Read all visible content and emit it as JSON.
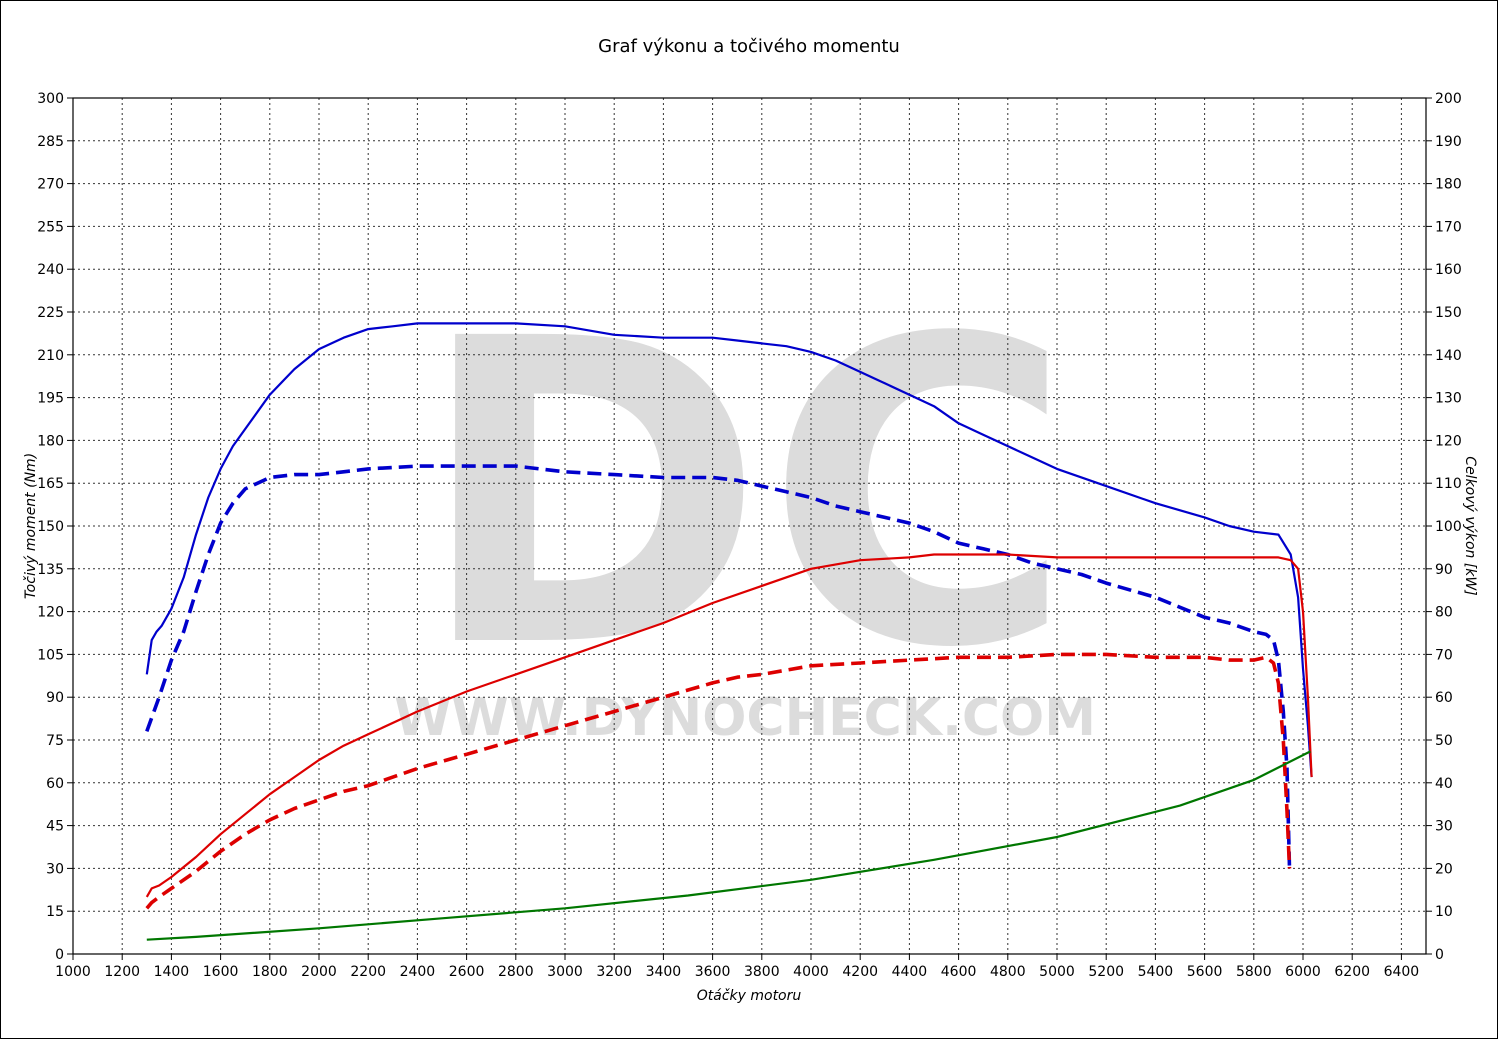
{
  "chart_data": {
    "type": "line",
    "title": "Graf výkonu a točivého momentu",
    "xlabel": "Otáčky motoru",
    "ylabel_left": "Točivý moment (Nm)",
    "ylabel_right": "Celkový výkon [kW]",
    "xlim": [
      1000,
      6500
    ],
    "ylim_left": [
      0,
      300
    ],
    "ylim_right": [
      0,
      200
    ],
    "x_ticks": [
      1000,
      1200,
      1400,
      1600,
      1800,
      2000,
      2200,
      2400,
      2600,
      2800,
      3000,
      3200,
      3400,
      3600,
      3800,
      4000,
      4200,
      4400,
      4600,
      4800,
      5000,
      5200,
      5400,
      5600,
      5800,
      6000,
      6200,
      6400
    ],
    "y_left_ticks": [
      0,
      15,
      30,
      45,
      60,
      75,
      90,
      105,
      120,
      135,
      150,
      165,
      180,
      195,
      210,
      225,
      240,
      255,
      270,
      285,
      300
    ],
    "y_right_ticks": [
      0,
      10,
      20,
      30,
      40,
      50,
      60,
      70,
      80,
      90,
      100,
      110,
      120,
      130,
      140,
      150,
      160,
      170,
      180,
      190,
      200
    ],
    "grid": true,
    "watermark": {
      "logo": "DC",
      "url": "WWW.DYNOCHECK.COM"
    },
    "series": [
      {
        "color": "#0000cc",
        "dash": false,
        "axis": "left",
        "x": [
          1300,
          1320,
          1340,
          1360,
          1400,
          1450,
          1500,
          1550,
          1600,
          1650,
          1700,
          1800,
          1900,
          2000,
          2100,
          2200,
          2300,
          2400,
          2600,
          2800,
          3000,
          3200,
          3400,
          3600,
          3700,
          3800,
          3900,
          4000,
          4100,
          4200,
          4300,
          4400,
          4500,
          4600,
          4700,
          4800,
          4900,
          5000,
          5200,
          5400,
          5600,
          5700,
          5800,
          5900,
          5950,
          5980,
          6000,
          6020,
          6035
        ],
        "y": [
          98,
          110,
          113,
          115,
          121,
          132,
          147,
          160,
          170,
          178,
          184,
          196,
          205,
          212,
          216,
          219,
          220,
          221,
          221,
          221,
          220,
          217,
          216,
          216,
          215,
          214,
          213,
          211,
          208,
          204,
          200,
          196,
          192,
          186,
          182,
          178,
          174,
          170,
          164,
          158,
          153,
          150,
          148,
          147,
          140,
          125,
          100,
          80,
          62
        ]
      },
      {
        "color": "#0000cc",
        "dash": true,
        "axis": "left",
        "x": [
          1300,
          1350,
          1400,
          1450,
          1500,
          1550,
          1600,
          1650,
          1700,
          1800,
          1900,
          2000,
          2100,
          2200,
          2400,
          2600,
          2800,
          3000,
          3200,
          3400,
          3600,
          3700,
          3800,
          3900,
          4000,
          4100,
          4200,
          4300,
          4400,
          4500,
          4600,
          4700,
          4800,
          4900,
          5000,
          5100,
          5200,
          5400,
          5600,
          5700,
          5800,
          5850,
          5880,
          5900,
          5920,
          5935,
          5945
        ],
        "y": [
          78,
          90,
          103,
          113,
          127,
          140,
          151,
          158,
          163,
          167,
          168,
          168,
          169,
          170,
          171,
          171,
          171,
          169,
          168,
          167,
          167,
          166,
          164,
          162,
          160,
          157,
          155,
          153,
          151,
          148,
          144,
          142,
          140,
          137,
          135,
          133,
          130,
          125,
          118,
          116,
          113,
          112,
          110,
          103,
          85,
          65,
          30
        ]
      },
      {
        "color": "#dd0000",
        "dash": false,
        "axis": "left",
        "x": [
          1300,
          1320,
          1350,
          1400,
          1500,
          1600,
          1700,
          1800,
          1900,
          2000,
          2100,
          2200,
          2400,
          2600,
          2800,
          3000,
          3200,
          3400,
          3600,
          3800,
          4000,
          4200,
          4400,
          4500,
          4600,
          4800,
          5000,
          5200,
          5400,
          5600,
          5800,
          5900,
          5950,
          5980,
          6000,
          6020,
          6035
        ],
        "y": [
          20,
          23,
          24,
          27,
          34,
          42,
          49,
          56,
          62,
          68,
          73,
          77,
          85,
          92,
          98,
          104,
          110,
          116,
          123,
          129,
          135,
          138,
          139,
          140,
          140,
          140,
          139,
          139,
          139,
          139,
          139,
          139,
          138,
          135,
          120,
          90,
          62
        ]
      },
      {
        "color": "#dd0000",
        "dash": true,
        "axis": "left",
        "x": [
          1300,
          1320,
          1350,
          1400,
          1500,
          1600,
          1700,
          1800,
          1900,
          2000,
          2100,
          2200,
          2400,
          2600,
          2800,
          3000,
          3200,
          3400,
          3600,
          3700,
          3800,
          4000,
          4200,
          4400,
          4600,
          4800,
          5000,
          5200,
          5400,
          5600,
          5700,
          5800,
          5850,
          5880,
          5900,
          5920,
          5935,
          5945
        ],
        "y": [
          16,
          18,
          20,
          23,
          29,
          36,
          42,
          47,
          51,
          54,
          57,
          59,
          65,
          70,
          75,
          80,
          85,
          90,
          95,
          97,
          98,
          101,
          102,
          103,
          104,
          104,
          105,
          105,
          104,
          104,
          103,
          103,
          104,
          102,
          95,
          75,
          50,
          30
        ]
      },
      {
        "color": "#007700",
        "dash": false,
        "axis": "left",
        "x": [
          1300,
          1500,
          2000,
          2500,
          3000,
          3500,
          4000,
          4500,
          5000,
          5500,
          5800,
          6030
        ],
        "y": [
          5,
          6,
          9,
          12.5,
          16,
          20.5,
          26,
          33,
          41,
          52,
          61,
          71
        ]
      }
    ]
  }
}
